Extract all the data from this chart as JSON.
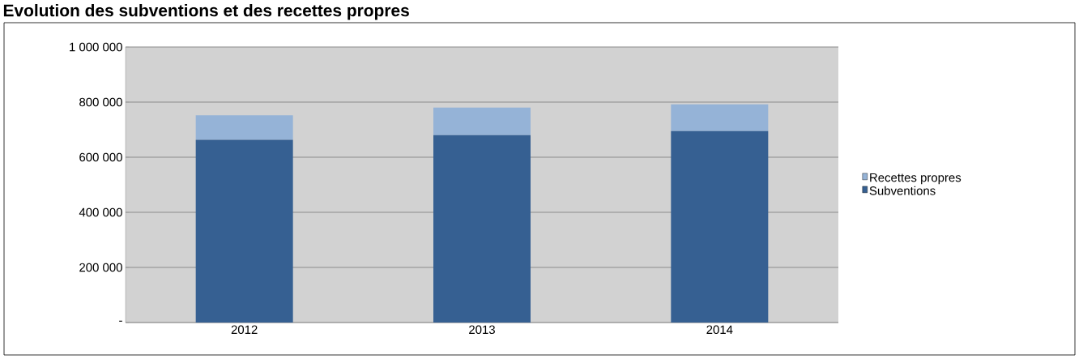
{
  "chart_data": {
    "type": "bar",
    "title": "Evolution des subventions et des recettes propres",
    "stacked": true,
    "categories": [
      "2012",
      "2013",
      "2014"
    ],
    "series": [
      {
        "name": "Subventions",
        "color": "#366092",
        "values": [
          663000,
          680000,
          695000
        ]
      },
      {
        "name": "Recettes propres",
        "color": "#95b3d7",
        "values": [
          89000,
          100000,
          97000
        ]
      }
    ],
    "ylim": [
      0,
      1000000
    ],
    "yticks": [
      {
        "value": 0,
        "label": "-"
      },
      {
        "value": 200000,
        "label": "200 000"
      },
      {
        "value": 400000,
        "label": "400 000"
      },
      {
        "value": 600000,
        "label": "600 000"
      },
      {
        "value": 800000,
        "label": "800 000"
      },
      {
        "value": 1000000,
        "label": "1 000 000"
      }
    ],
    "grid": "y",
    "legend": "right"
  }
}
